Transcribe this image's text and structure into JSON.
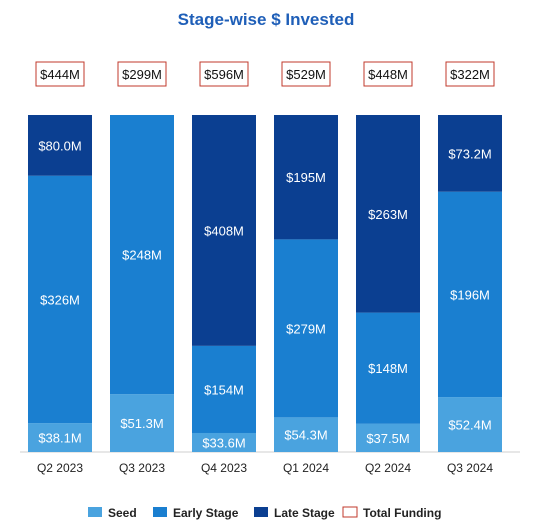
{
  "chart_data": {
    "type": "bar",
    "stacked": true,
    "title": "Stage-wise $ Invested",
    "categories": [
      "Q2 2023",
      "Q3 2023",
      "Q4 2023",
      "Q1 2024",
      "Q2 2024",
      "Q3 2024"
    ],
    "series": [
      {
        "name": "Seed",
        "color": "#4aa3df",
        "values": [
          38.1,
          51.3,
          33.6,
          54.3,
          37.5,
          52.4
        ],
        "labels": [
          "$38.1M",
          "$51.3M",
          "$33.6M",
          "$54.3M",
          "$37.5M",
          "$52.4M"
        ]
      },
      {
        "name": "Early Stage",
        "color": "#1a7fd0",
        "values": [
          326,
          248,
          154,
          279,
          148,
          196
        ],
        "labels": [
          "$326M",
          "$248M",
          "$154M",
          "$279M",
          "$148M",
          "$196M"
        ]
      },
      {
        "name": "Late Stage",
        "color": "#0b3f91",
        "values": [
          80.0,
          0,
          408,
          195,
          263,
          73.2
        ],
        "labels": [
          "$80.0M",
          "",
          "$408M",
          "$195M",
          "$263M",
          "$73.2M"
        ]
      }
    ],
    "totals": {
      "name": "Total Funding",
      "values": [
        444,
        299,
        596,
        529,
        448,
        322
      ],
      "labels": [
        "$444M",
        "$299M",
        "$596M",
        "$529M",
        "$448M",
        "$322M"
      ]
    },
    "colors": {
      "title": "#1f5fb8",
      "total_border": "#c0392b",
      "segment_text": "#ffffff"
    },
    "legend_position": "bottom",
    "grid": false
  }
}
